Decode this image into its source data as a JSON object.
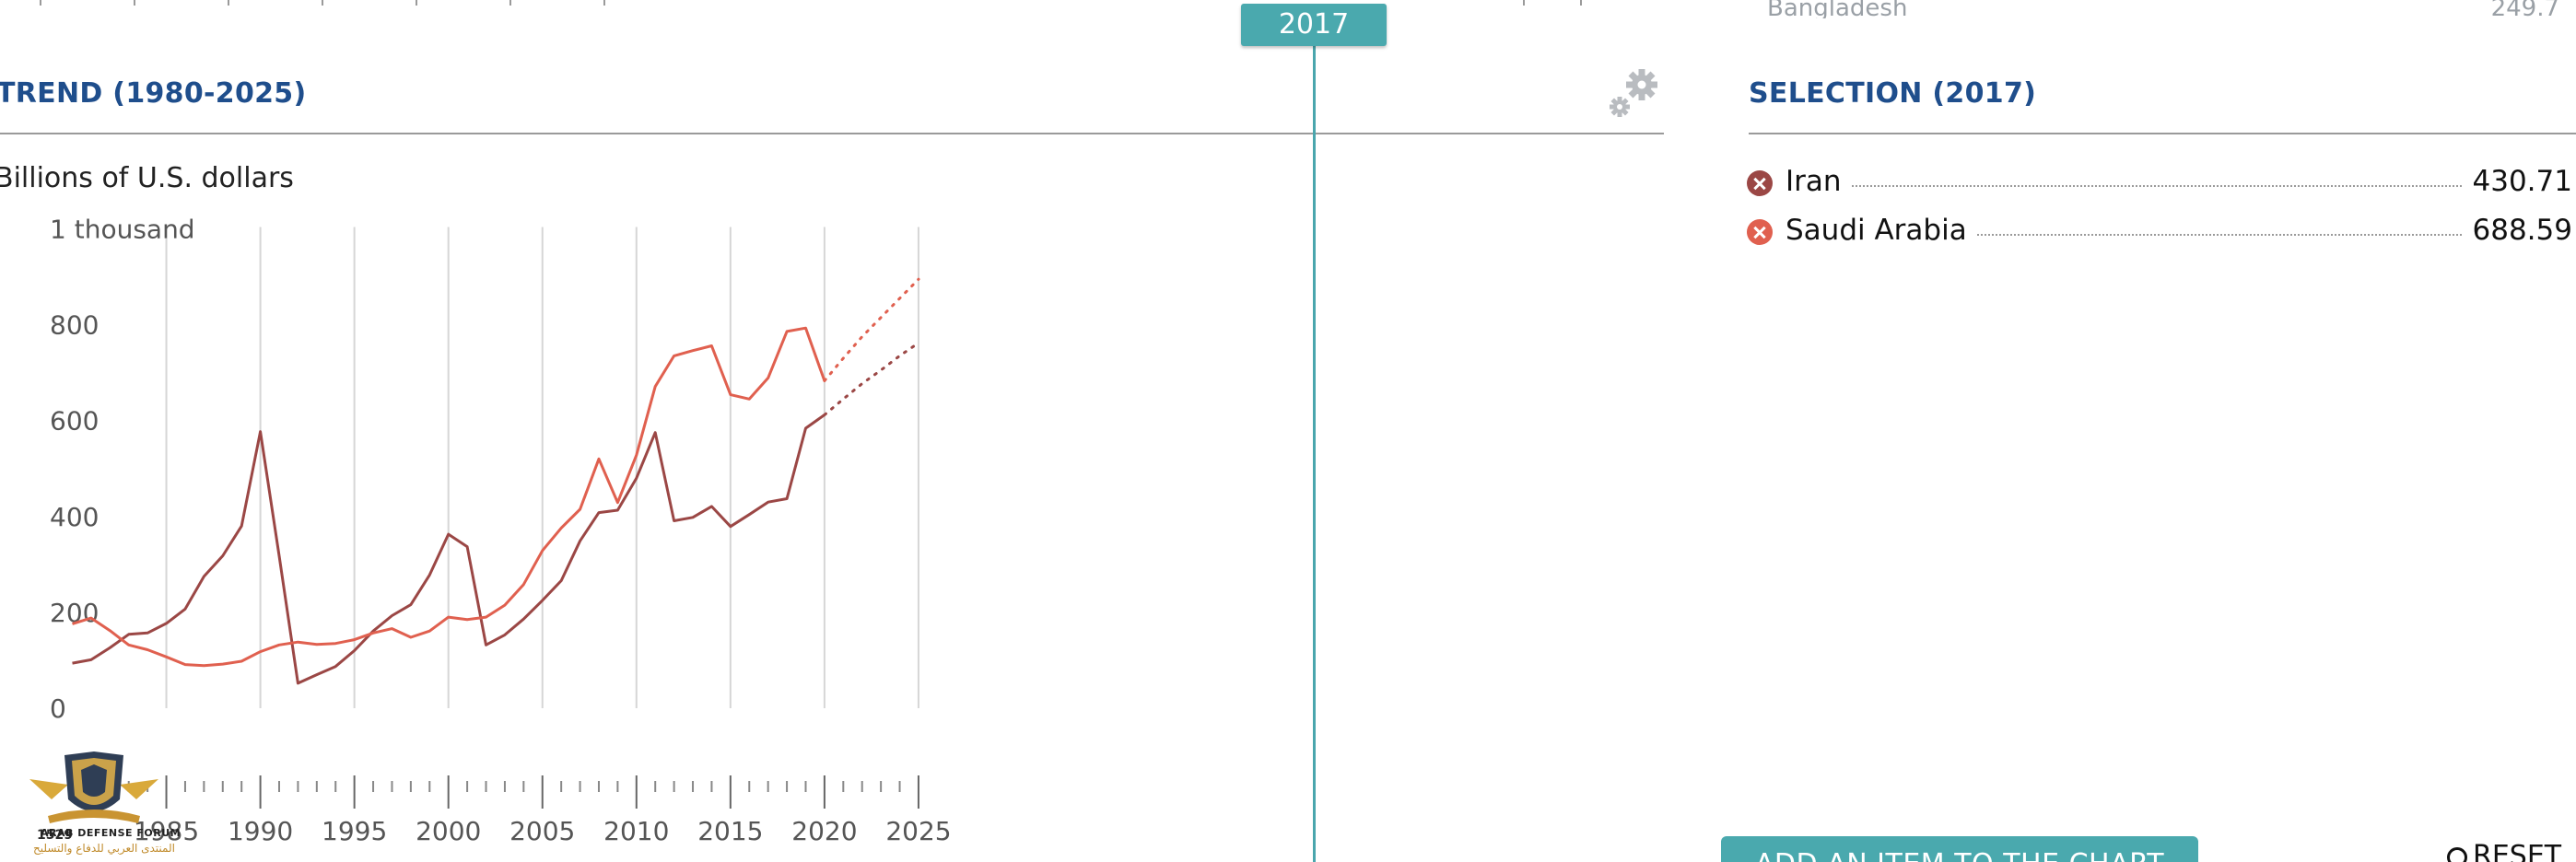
{
  "panel_trend": {
    "title": "TREND (1980-2025)",
    "units": "Billions of U.S. dollars"
  },
  "panel_selection": {
    "title": "SELECTION (2017)",
    "items": [
      {
        "name": "Iran",
        "value": "430.71",
        "color": "#9b4745"
      },
      {
        "name": "Saudi Arabia",
        "value": "688.59",
        "color": "#e0604f"
      }
    ],
    "clipped_row": {
      "name": "Bangladesh",
      "value": "249.7"
    }
  },
  "year_marker": {
    "label": "2017"
  },
  "actions": {
    "add_item": "ADD AN ITEM TO THE CHART",
    "reset": "RESET"
  },
  "watermark": {
    "line1": "ARAB DEFENSE FORUM",
    "line2": "المنتدى العربي للدفاع والتسليح",
    "mark": "1529"
  },
  "icons": {
    "settings": "gear-icon",
    "remove": "close-circle-icon",
    "reset": "reset-icon"
  },
  "chart_data": {
    "type": "line",
    "title": "TREND (1980-2025)",
    "ylabel": "Billions of U.S. dollars",
    "ylim": [
      0,
      1000
    ],
    "yticks": [
      0,
      200,
      400,
      600,
      800,
      1000
    ],
    "ytick_labels": [
      "0",
      "200",
      "400",
      "600",
      "800",
      "1 thousand"
    ],
    "xlim": [
      1980,
      2025
    ],
    "xticks": [
      1985,
      1990,
      1995,
      2000,
      2005,
      2010,
      2015,
      2020,
      2025
    ],
    "grid": true,
    "projection_start": 2020,
    "series": [
      {
        "name": "Iran",
        "color": "#9b4745",
        "x": [
          1980,
          1981,
          1982,
          1983,
          1984,
          1985,
          1986,
          1987,
          1988,
          1989,
          1990,
          1991,
          1992,
          1993,
          1994,
          1995,
          1996,
          1997,
          1998,
          1999,
          2000,
          2001,
          2002,
          2003,
          2004,
          2005,
          2006,
          2007,
          2008,
          2009,
          2010,
          2011,
          2012,
          2013,
          2014,
          2015,
          2016,
          2017,
          2018,
          2019,
          2020
        ],
        "y": [
          94,
          101,
          126,
          154,
          157,
          177,
          207,
          275,
          318,
          380,
          577,
          318,
          52,
          70,
          87,
          120,
          161,
          193,
          216,
          278,
          363,
          337,
          132,
          153,
          186,
          225,
          266,
          349,
          408,
          413,
          480,
          575,
          391,
          398,
          421,
          379,
          404,
          430,
          437,
          584,
          612
        ]
      },
      {
        "name": "Saudi Arabia",
        "color": "#e0604f",
        "x": [
          1980,
          1981,
          1982,
          1983,
          1984,
          1985,
          1986,
          1987,
          1988,
          1989,
          1990,
          1991,
          1992,
          1993,
          1994,
          1995,
          1996,
          1997,
          1998,
          1999,
          2000,
          2001,
          2002,
          2003,
          2004,
          2005,
          2006,
          2007,
          2008,
          2009,
          2010,
          2011,
          2012,
          2013,
          2014,
          2015,
          2016,
          2017,
          2018,
          2019,
          2020
        ],
        "y": [
          176,
          188,
          162,
          132,
          122,
          107,
          91,
          89,
          92,
          98,
          118,
          132,
          138,
          133,
          135,
          143,
          157,
          166,
          148,
          161,
          190,
          185,
          190,
          215,
          258,
          329,
          376,
          415,
          520,
          429,
          528,
          671,
          735,
          746,
          756,
          654,
          645,
          689,
          786,
          793,
          683
        ]
      }
    ],
    "projections": [
      {
        "name": "Iran",
        "x": [
          2020,
          2021,
          2022,
          2023,
          2024,
          2025
        ],
        "y": [
          612,
          645,
          677,
          705,
          735,
          762
        ]
      },
      {
        "name": "Saudi Arabia",
        "x": [
          2020,
          2021,
          2022,
          2023,
          2024,
          2025
        ],
        "y": [
          683,
          730,
          775,
          815,
          855,
          895
        ]
      }
    ]
  }
}
